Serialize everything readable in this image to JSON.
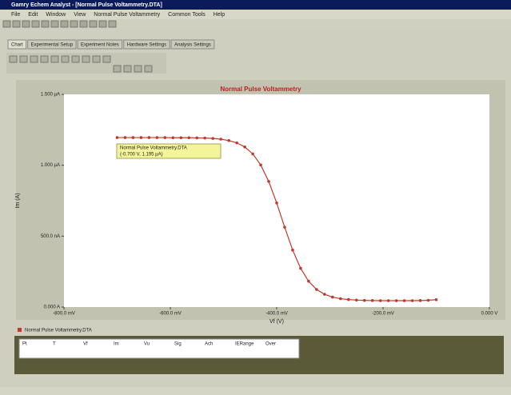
{
  "window": {
    "title": "Gamry Echem Analyst - [Normal Pulse Voltammetry.DTA]"
  },
  "menu": [
    "File",
    "Edit",
    "Window",
    "View",
    "Normal Pulse Voltammetry",
    "Common Tools",
    "Help"
  ],
  "tabs": [
    "Chart",
    "Experimental Setup",
    "Experiment Notes",
    "Hardware Settings",
    "Analysis Settings"
  ],
  "tooltip": [
    "Normal Pulse Voltammetry.DTA",
    "(-0.700 V, 1.195 µA)"
  ],
  "legend": "Normal Pulse Voltammetry.DTA",
  "table": {
    "header": [
      "Pt",
      "T",
      "Vf",
      "Im",
      "Vu",
      "Sig",
      "Ach",
      "IERange",
      "Over"
    ]
  },
  "chart_data": {
    "type": "line",
    "title": "Normal Pulse Voltammetry",
    "x_label": "Vf (V)",
    "y_label": "Im (A)",
    "color": "#c0392b",
    "xlim": [
      -0.8,
      0
    ],
    "xticks": [
      {
        "value": -0.8,
        "label": "-800.0 mV"
      },
      {
        "value": -0.6,
        "label": "-600.0 mV"
      },
      {
        "value": -0.4,
        "label": "-400.0 mV"
      },
      {
        "value": -0.2,
        "label": "-200.0 mV"
      },
      {
        "value": 0,
        "label": "0.000 V"
      }
    ],
    "ylim": [
      0,
      1.5
    ],
    "yticks": [
      {
        "value": 0,
        "label": "0.000 A"
      },
      {
        "value": 0.5,
        "label": "500.0 nA"
      },
      {
        "value": 1.0,
        "label": "1.000 µA"
      },
      {
        "value": 1.5,
        "label": "1.500 µA"
      }
    ],
    "x": [
      -0.7,
      -0.685,
      -0.67,
      -0.655,
      -0.64,
      -0.625,
      -0.61,
      -0.595,
      -0.58,
      -0.565,
      -0.55,
      -0.535,
      -0.52,
      -0.505,
      -0.49,
      -0.475,
      -0.46,
      -0.445,
      -0.43,
      -0.415,
      -0.4,
      -0.385,
      -0.37,
      -0.355,
      -0.34,
      -0.325,
      -0.31,
      -0.295,
      -0.28,
      -0.265,
      -0.25,
      -0.235,
      -0.22,
      -0.205,
      -0.19,
      -0.175,
      -0.16,
      -0.145,
      -0.13,
      -0.115,
      -0.1
    ],
    "values": [
      1.195,
      1.195,
      1.195,
      1.195,
      1.195,
      1.195,
      1.195,
      1.194,
      1.194,
      1.194,
      1.193,
      1.192,
      1.189,
      1.184,
      1.174,
      1.158,
      1.129,
      1.08,
      1.002,
      0.886,
      0.734,
      0.563,
      0.402,
      0.273,
      0.182,
      0.124,
      0.09,
      0.07,
      0.059,
      0.053,
      0.049,
      0.047,
      0.046,
      0.045,
      0.045,
      0.045,
      0.045,
      0.045,
      0.046,
      0.048,
      0.052
    ]
  }
}
